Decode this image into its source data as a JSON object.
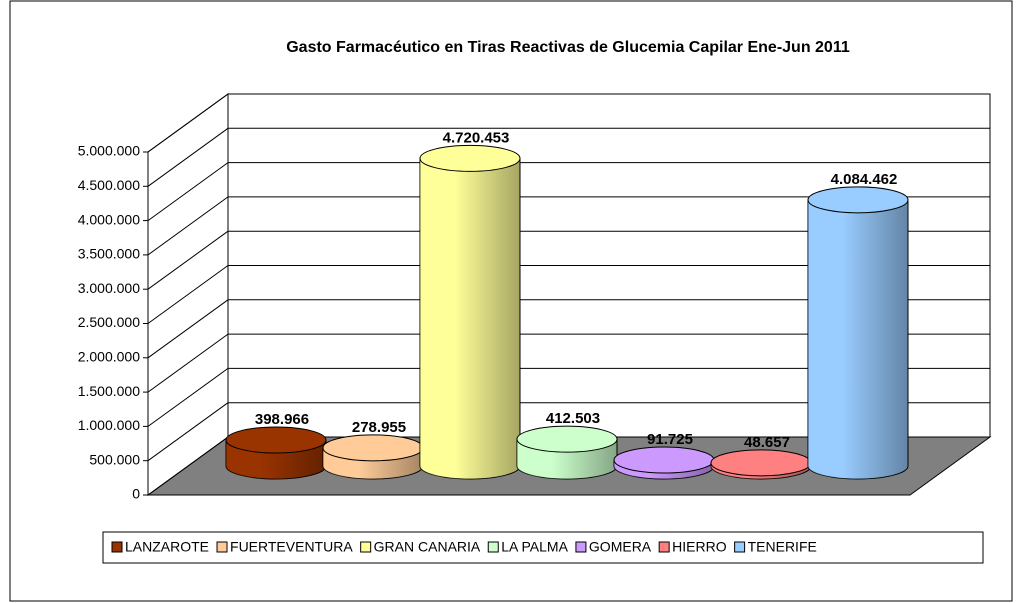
{
  "chart_data": {
    "type": "bar3d_cylinder",
    "title": "Gasto Farmacéutico en Tiras Reactivas de Glucemia Capilar Ene-Jun 2011",
    "categories": [
      "LANZAROTE",
      "FUERTEVENTURA",
      "GRAN CANARIA",
      "LA PALMA",
      "GOMERA",
      "HIERRO",
      "TENERIFE"
    ],
    "values": [
      398966,
      278955,
      4720453,
      412503,
      91725,
      48657,
      4084462
    ],
    "value_labels": [
      "398.966",
      "278.955",
      "4.720.453",
      "412.503",
      "91.725",
      "48.657",
      "4.084.462"
    ],
    "colors": [
      "#993300",
      "#ffcc99",
      "#ffff99",
      "#ccffcc",
      "#cc99ff",
      "#ff8080",
      "#99ccff"
    ],
    "ylim": [
      0,
      5000000
    ],
    "yticks": [
      0,
      {
        "value": 500000,
        "label": "500.000"
      },
      {
        "value": 1000000,
        "label": "1.000.000"
      },
      {
        "value": 1500000,
        "label": "1.500.000"
      },
      {
        "value": 2000000,
        "label": "2.000.000"
      },
      {
        "value": 2500000,
        "label": "2.500.000"
      },
      {
        "value": 3000000,
        "label": "3.000.000"
      },
      {
        "value": 3500000,
        "label": "3.500.000"
      },
      {
        "value": 4000000,
        "label": "4.000.000"
      },
      {
        "value": 4500000,
        "label": "4.500.000"
      },
      {
        "value": 5000000,
        "label": "5.000.000"
      }
    ],
    "grid": true,
    "legend": "bottom"
  }
}
